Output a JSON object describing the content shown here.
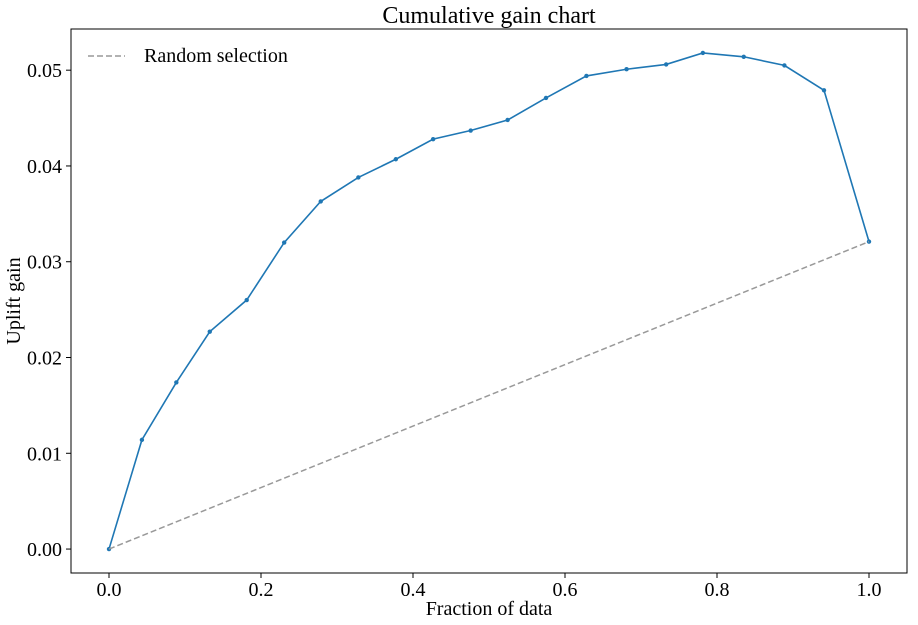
{
  "chart_data": {
    "type": "line",
    "title": "Cumulative gain chart",
    "xlabel": "Fraction of data",
    "ylabel": "Uplift gain",
    "xlim": [
      -0.05,
      1.05
    ],
    "ylim": [
      -0.0025,
      0.0543
    ],
    "grid": false,
    "legend_position": "top-left",
    "x_ticks": [
      0.0,
      0.2,
      0.4,
      0.6,
      0.8,
      1.0
    ],
    "x_tick_labels": [
      "0.0",
      "0.2",
      "0.4",
      "0.6",
      "0.8",
      "1.0"
    ],
    "y_ticks": [
      0.0,
      0.01,
      0.02,
      0.03,
      0.04,
      0.05
    ],
    "y_tick_labels": [
      "0.00",
      "0.01",
      "0.02",
      "0.03",
      "0.04",
      "0.05"
    ],
    "series": [
      {
        "color": "#1f77b4",
        "style": "solid",
        "markers": true,
        "x": [
          0.0,
          0.0433,
          0.0886,
          0.1326,
          0.1812,
          0.2305,
          0.2786,
          0.3281,
          0.3774,
          0.4265,
          0.4759,
          0.5245,
          0.575,
          0.6282,
          0.681,
          0.7331,
          0.7814,
          0.8352,
          0.8887,
          0.9408,
          1.0
        ],
        "y": [
          0.0,
          0.0114,
          0.0174,
          0.0227,
          0.026,
          0.032,
          0.0363,
          0.0388,
          0.0407,
          0.0428,
          0.0437,
          0.0448,
          0.0471,
          0.0494,
          0.0501,
          0.0506,
          0.0518,
          0.0514,
          0.0505,
          0.0479,
          0.0321
        ]
      },
      {
        "name": "Random selection",
        "color": "#999999",
        "style": "dashed",
        "markers": false,
        "x": [
          0.0,
          1.0
        ],
        "y": [
          0.0,
          0.0321
        ]
      }
    ]
  }
}
